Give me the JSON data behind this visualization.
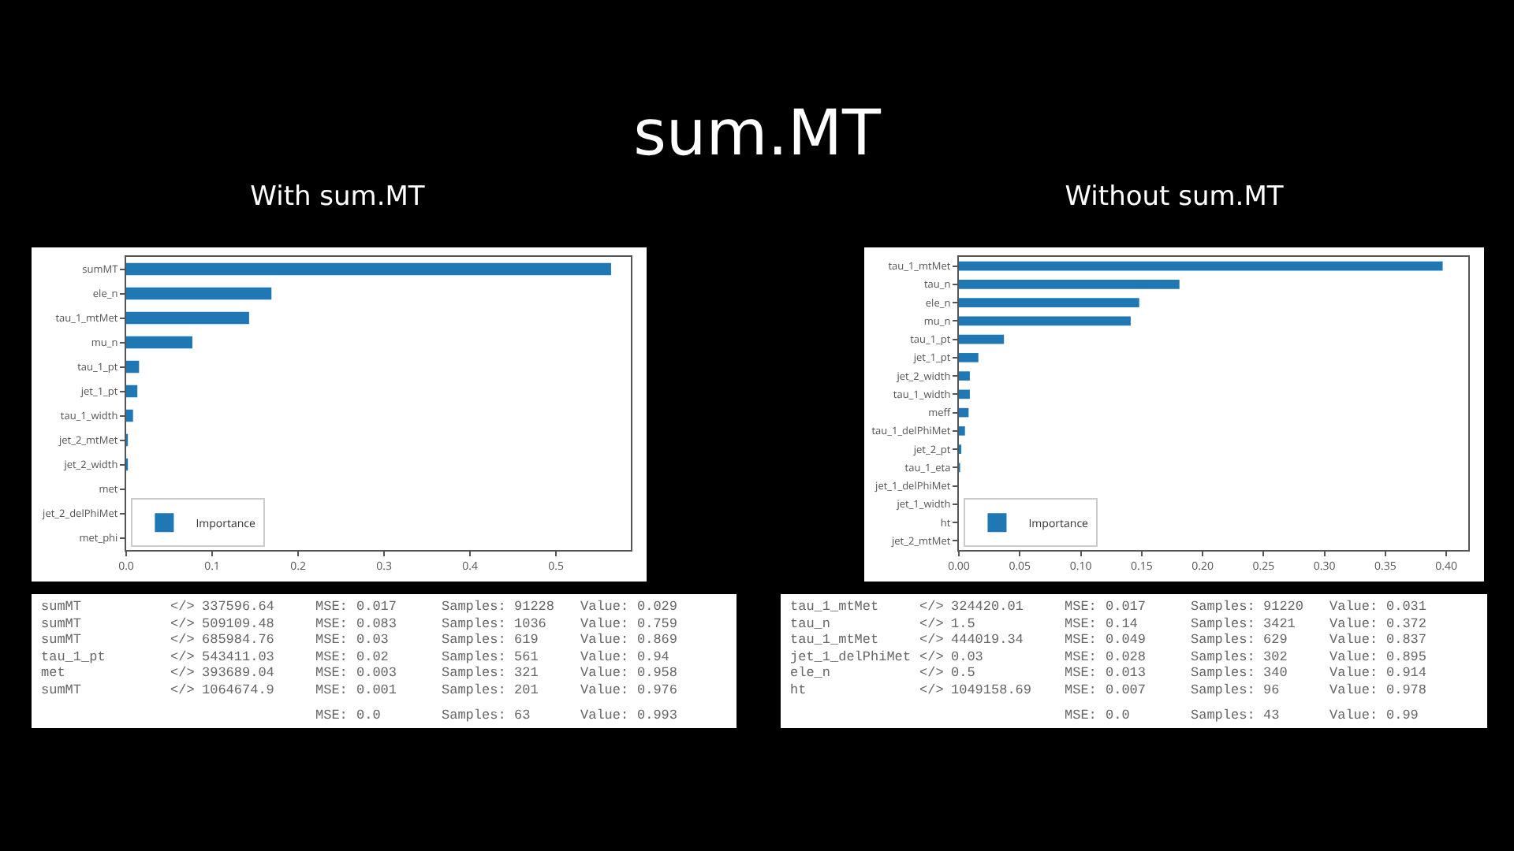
{
  "chart_data": [
    {
      "type": "other",
      "title": "sum.MT"
    },
    {
      "type": "bar",
      "orientation": "horizontal",
      "title": "With sum.MT",
      "categories": [
        "sumMT",
        "ele_n",
        "tau_1_mtMet",
        "mu_n",
        "tau_1_pt",
        "jet_1_pt",
        "tau_1_width",
        "jet_2_mtMet",
        "jet_2_width",
        "met",
        "jet_2_delPhiMet",
        "met_phi"
      ],
      "series": [
        {
          "name": "Importance",
          "color": "#1f77b4",
          "values": [
            0.564,
            0.169,
            0.143,
            0.077,
            0.015,
            0.013,
            0.008,
            0.002,
            0.002,
            0,
            0,
            0
          ]
        }
      ],
      "xlim": [
        0,
        0.587
      ],
      "xticks": [
        {
          "value": 0,
          "label": "0.0"
        },
        0.1,
        0.2,
        0.3,
        0.4,
        0.5
      ],
      "legend": "bottom left",
      "grid": false,
      "annotations": [
        "sumMT </> 337596.64 MSE: 0.017 Samples: 91228 Value: 0.029",
        "sumMT </> 509109.48 MSE: 0.083 Samples: 1036 Value: 0.759",
        "sumMT </> 685984.76 MSE: 0.03 Samples: 619 Value: 0.869",
        "tau_1_pt </> 543411.03 MSE: 0.02 Samples: 561 Value: 0.94",
        "met </> 393689.04 MSE: 0.003 Samples: 321 Value: 0.958",
        "sumMT </> 1064674.9 MSE: 0.001 Samples: 201 Value: 0.976",
        "MSE: 0.0 Samples: 63 Value: 0.993"
      ]
    },
    {
      "type": "bar",
      "orientation": "horizontal",
      "title": "Without sum.MT",
      "categories": [
        "tau_1_mtMet",
        "tau_n",
        "ele_n",
        "mu_n",
        "tau_1_pt",
        "jet_1_pt",
        "jet_2_width",
        "tau_1_width",
        "meff",
        "tau_1_delPhiMet",
        "jet_2_pt",
        "tau_1_eta",
        "jet_1_delPhiMet",
        "jet_1_width",
        "ht",
        "jet_2_mtMet"
      ],
      "series": [
        {
          "name": "Importance",
          "color": "#1f77b4",
          "values": [
            0.397,
            0.181,
            0.148,
            0.141,
            0.037,
            0.016,
            0.009,
            0.009,
            0.008,
            0.005,
            0.002,
            0.001,
            0,
            0,
            0,
            0
          ]
        }
      ],
      "xlim": [
        0,
        0.418
      ],
      "xticks": [
        {
          "value": 0,
          "label": "0.00"
        },
        {
          "value": 0.05,
          "label": "0.05"
        },
        {
          "value": 0.1,
          "label": "0.10"
        },
        {
          "value": 0.15,
          "label": "0.15"
        },
        {
          "value": 0.2,
          "label": "0.20"
        },
        {
          "value": 0.25,
          "label": "0.25"
        },
        {
          "value": 0.3,
          "label": "0.30"
        },
        {
          "value": 0.35,
          "label": "0.35"
        },
        {
          "value": 0.4,
          "label": "0.40"
        }
      ],
      "legend": "bottom left",
      "grid": false,
      "annotations": [
        "tau_1_mtMet </> 324420.01 MSE: 0.017 Samples: 91220 Value: 0.031",
        "tau_n </> 1.5 MSE: 0.14 Samples: 3421 Value: 0.372",
        "tau_1_mtMet </> 444019.34 MSE: 0.049 Samples: 629 Value: 0.837",
        "jet_1_delPhiMet </> 0.03 MSE: 0.028 Samples: 302 Value: 0.895",
        "ele_n </> 0.5 MSE: 0.013 Samples: 340 Value: 0.914",
        "ht </> 1049158.69 MSE: 0.007 Samples: 96 Value: 0.978",
        "MSE: 0.0 Samples: 43 Value: 0.99"
      ]
    }
  ]
}
